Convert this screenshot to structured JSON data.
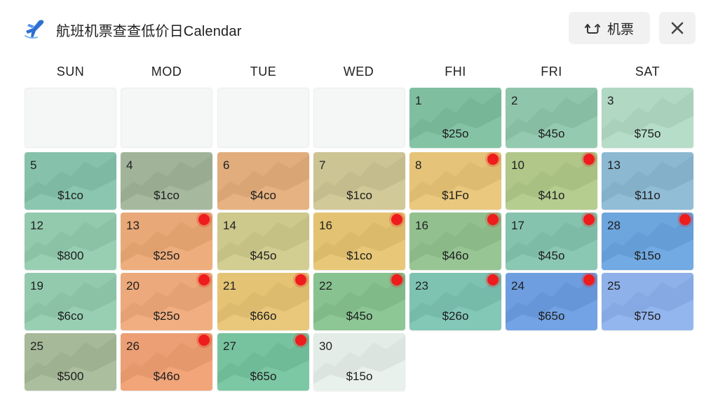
{
  "header": {
    "title": "航班机票查查低价日Calendar",
    "flights_button_label": "机票"
  },
  "weekdays": [
    "SUN",
    "MOD",
    "TUE",
    "WED",
    "FHI",
    "FRI",
    "SAT"
  ],
  "calendar": {
    "rows": [
      [
        {
          "empty": true
        },
        {
          "empty": true
        },
        {
          "empty": true
        },
        {
          "empty": true
        },
        {
          "day": "1",
          "price": "$25o",
          "color": "#7fbfa0",
          "alert": false
        },
        {
          "day": "2",
          "price": "$45o",
          "color": "#8fc6ab",
          "alert": false
        },
        {
          "day": "3",
          "price": "$75o",
          "color": "#b0d8c3",
          "alert": false
        }
      ],
      [
        {
          "day": "5",
          "price": "$1co",
          "color": "#86c2ab",
          "alert": false
        },
        {
          "day": "4",
          "price": "$1co",
          "color": "#a1b49a",
          "alert": false
        },
        {
          "day": "6",
          "price": "$4co",
          "color": "#e1ad7d",
          "alert": false
        },
        {
          "day": "7",
          "price": "$1co",
          "color": "#cdc494",
          "alert": false
        },
        {
          "day": "8",
          "price": "$1Fo",
          "color": "#e5c378",
          "alert": true
        },
        {
          "day": "10",
          "price": "$41o",
          "color": "#b0c789",
          "alert": true
        },
        {
          "day": "13",
          "price": "$11o",
          "color": "#8cb8d1",
          "alert": false
        }
      ],
      [
        {
          "day": "12",
          "price": "$800",
          "color": "#93caae",
          "alert": false
        },
        {
          "day": "13",
          "price": "$25o",
          "color": "#e9a877",
          "alert": true
        },
        {
          "day": "14",
          "price": "$45o",
          "color": "#cdc88c",
          "alert": false
        },
        {
          "day": "16",
          "price": "$1co",
          "color": "#e3c373",
          "alert": true
        },
        {
          "day": "16",
          "price": "$46o",
          "color": "#93c08f",
          "alert": true
        },
        {
          "day": "17",
          "price": "$45o",
          "color": "#86c3ae",
          "alert": true
        },
        {
          "day": "28",
          "price": "$15o",
          "color": "#6da5dd",
          "alert": true
        }
      ],
      [
        {
          "day": "19",
          "price": "$6co",
          "color": "#93caae",
          "alert": false
        },
        {
          "day": "20",
          "price": "$25o",
          "color": "#eca97b",
          "alert": true
        },
        {
          "day": "21",
          "price": "$66o",
          "color": "#e4c375",
          "alert": true
        },
        {
          "day": "22",
          "price": "$45o",
          "color": "#88c290",
          "alert": true
        },
        {
          "day": "23",
          "price": "$26o",
          "color": "#7ec2b2",
          "alert": true
        },
        {
          "day": "24",
          "price": "$65o",
          "color": "#6e9ee0",
          "alert": true
        },
        {
          "day": "25",
          "price": "$75o",
          "color": "#8fb1ea",
          "alert": false
        }
      ],
      [
        {
          "day": "25",
          "price": "$500",
          "color": "#a6b999",
          "alert": false
        },
        {
          "day": "26",
          "price": "$46o",
          "color": "#ec9f74",
          "alert": true
        },
        {
          "day": "27",
          "price": "$65o",
          "color": "#77c39f",
          "alert": true
        },
        {
          "day": "30",
          "price": "$15o",
          "color": "#e3ece6",
          "alert": false
        },
        {
          "empty": true,
          "blank": true
        },
        {
          "empty": true,
          "blank": true
        },
        {
          "empty": true,
          "blank": true
        }
      ]
    ]
  }
}
